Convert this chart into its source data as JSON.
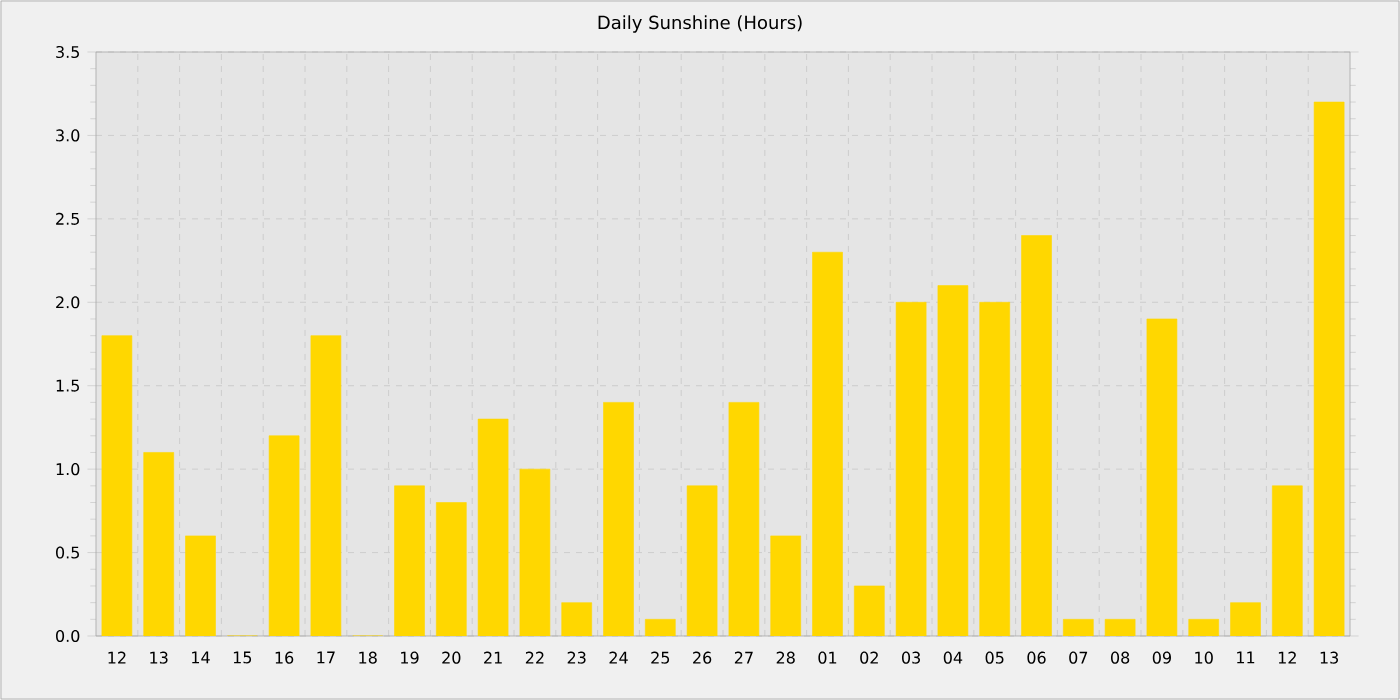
{
  "chart_data": {
    "type": "bar",
    "title": "Daily Sunshine (Hours)",
    "categories": [
      "12",
      "13",
      "14",
      "15",
      "16",
      "17",
      "18",
      "19",
      "20",
      "21",
      "22",
      "23",
      "24",
      "25",
      "26",
      "27",
      "28",
      "01",
      "02",
      "03",
      "04",
      "05",
      "06",
      "07",
      "08",
      "09",
      "10",
      "11",
      "12",
      "13"
    ],
    "values": [
      1.8,
      1.1,
      0.6,
      0,
      1.2,
      1.8,
      0,
      0.9,
      0.8,
      1.3,
      1.0,
      0.2,
      1.4,
      0.1,
      0.9,
      1.4,
      0.6,
      2.3,
      0.3,
      2.0,
      2.1,
      2.0,
      2.4,
      0.1,
      0.1,
      1.9,
      0.1,
      0.2,
      0.9,
      3.2
    ],
    "color": "#ffd700",
    "ylim": [
      0,
      3.5
    ],
    "yticks": [
      {
        "value": 0,
        "label": "0.0"
      },
      {
        "value": 0.5,
        "label": "0.5"
      },
      {
        "value": 1,
        "label": "1.0"
      },
      {
        "value": 1.5,
        "label": "1.5"
      },
      {
        "value": 2,
        "label": "2.0"
      },
      {
        "value": 2.5,
        "label": "2.5"
      },
      {
        "value": 3,
        "label": "3.0"
      },
      {
        "value": 3.5,
        "label": "3.5"
      }
    ],
    "grid": true
  }
}
